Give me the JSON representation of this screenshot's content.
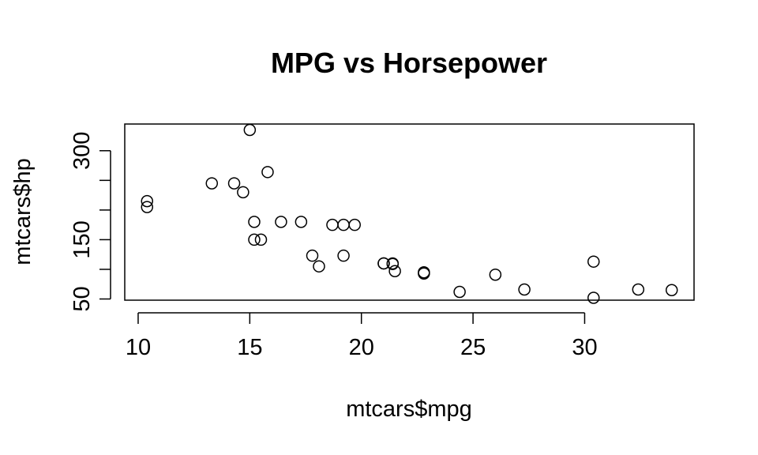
{
  "chart_data": {
    "type": "scatter",
    "title": "MPG vs Horsepower",
    "xlabel": "mtcars$mpg",
    "ylabel": "mtcars$hp",
    "xlim": [
      9.4,
      34.9
    ],
    "ylim": [
      48,
      345
    ],
    "xticks": [
      10,
      15,
      20,
      25,
      30
    ],
    "yticks": [
      50,
      100,
      150,
      200,
      250,
      300
    ],
    "ytick_labels": [
      "50",
      "",
      "150",
      "",
      "",
      "300"
    ],
    "grid": false,
    "legend": "none",
    "marker": "open-circle",
    "x": [
      21,
      21,
      22.8,
      21.4,
      18.7,
      18.1,
      14.3,
      24.4,
      22.8,
      19.2,
      17.8,
      16.4,
      17.3,
      15.2,
      10.4,
      10.4,
      14.7,
      32.4,
      30.4,
      33.9,
      21.5,
      15.5,
      15.2,
      13.3,
      19.2,
      27.3,
      26,
      30.4,
      15.8,
      19.7,
      15,
      21.4
    ],
    "y": [
      110,
      110,
      93,
      110,
      175,
      105,
      245,
      62,
      95,
      123,
      123,
      180,
      180,
      180,
      205,
      215,
      230,
      66,
      52,
      65,
      97,
      150,
      150,
      245,
      175,
      66,
      91,
      113,
      264,
      175,
      335,
      109
    ]
  }
}
